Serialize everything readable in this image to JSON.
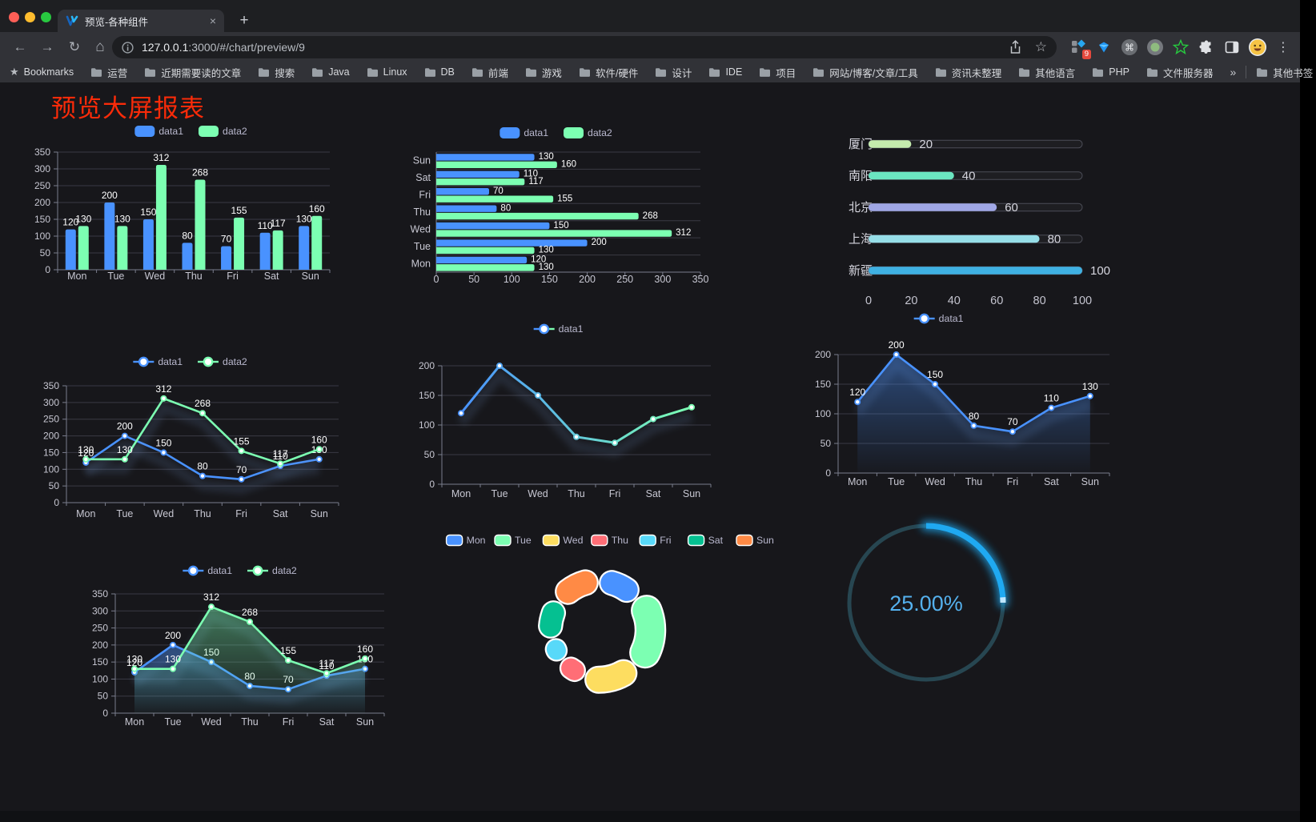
{
  "browser": {
    "tab_title": "预览-各种组件",
    "url_host": "127.0.0.1",
    "url_rest": ":3000/#/chart/preview/9",
    "extension_badge": "9"
  },
  "icons": {
    "close_tab": "×",
    "new_tab": "+",
    "back": "←",
    "forward": "→",
    "reload": "↻",
    "home": "⌂",
    "bookmark_star_outline": "☆",
    "menu_dots": "⋮",
    "bookmarks_star": "★",
    "command": "⌘",
    "overflow_chevron": "»"
  },
  "bookmarks_bar": {
    "bookmarks_label": "Bookmarks",
    "folders": [
      "运营",
      "近期需要读的文章",
      "搜索",
      "Java",
      "Linux",
      "DB",
      "前端",
      "游戏",
      "软件/硬件",
      "设计",
      "IDE",
      "项目",
      "网站/博客/文章/工具",
      "资讯未整理",
      "其他语言",
      "PHP",
      "文件服务器"
    ],
    "other_bookmarks": "其他书签"
  },
  "page": {
    "title": "预览大屏报表",
    "title_color": "#fa2b09",
    "background": "#17171b"
  },
  "chart_data": [
    {
      "id": "bar-vertical",
      "type": "bar",
      "categories": [
        "Mon",
        "Tue",
        "Wed",
        "Thu",
        "Fri",
        "Sat",
        "Sun"
      ],
      "series": [
        {
          "name": "data1",
          "color": "#4992ff",
          "values": [
            120,
            200,
            150,
            80,
            70,
            110,
            130
          ]
        },
        {
          "name": "data2",
          "color": "#7cffb2",
          "values": [
            130,
            130,
            312,
            268,
            155,
            117,
            160
          ]
        }
      ],
      "ylim": [
        0,
        350
      ],
      "ystep": 50,
      "legend_position": "top",
      "grid": true,
      "value_labels": true
    },
    {
      "id": "bar-horizontal",
      "type": "bar-horizontal",
      "categories": [
        "Mon",
        "Tue",
        "Wed",
        "Thu",
        "Fri",
        "Sat",
        "Sun"
      ],
      "series": [
        {
          "name": "data1",
          "color": "#4992ff",
          "values": [
            120,
            200,
            150,
            80,
            70,
            110,
            130
          ]
        },
        {
          "name": "data2",
          "color": "#7cffb2",
          "values": [
            130,
            130,
            312,
            268,
            155,
            117,
            160
          ]
        }
      ],
      "xlim": [
        0,
        350
      ],
      "xstep": 50,
      "legend_position": "top",
      "value_labels": true
    },
    {
      "id": "progress-bars",
      "type": "progress",
      "items": [
        {
          "label": "厦门",
          "value": 20,
          "color": "#c4ebad"
        },
        {
          "label": "南阳",
          "value": 40,
          "color": "#6be6c1"
        },
        {
          "label": "北京",
          "value": 60,
          "color": "#a0a7e6"
        },
        {
          "label": "上海",
          "value": 80,
          "color": "#96dee8"
        },
        {
          "label": "新疆",
          "value": 100,
          "color": "#3fb1e3"
        }
      ],
      "xlim": [
        0,
        100
      ],
      "xticks": [
        0,
        20,
        40,
        60,
        80,
        100
      ]
    },
    {
      "id": "line-two-series",
      "type": "line",
      "categories": [
        "Mon",
        "Tue",
        "Wed",
        "Thu",
        "Fri",
        "Sat",
        "Sun"
      ],
      "series": [
        {
          "name": "data1",
          "color": "#4992ff",
          "values": [
            120,
            200,
            150,
            80,
            70,
            110,
            130
          ]
        },
        {
          "name": "data2",
          "color": "#7cffb2",
          "values": [
            130,
            130,
            312,
            268,
            155,
            117,
            160
          ]
        }
      ],
      "ylim": [
        0,
        350
      ],
      "ystep": 50,
      "legend_position": "top",
      "value_labels": true
    },
    {
      "id": "line-gradient",
      "type": "line-gradient",
      "categories": [
        "Mon",
        "Tue",
        "Wed",
        "Thu",
        "Fri",
        "Sat",
        "Sun"
      ],
      "series": [
        {
          "name": "data1",
          "color": "#4992ff",
          "color_end": "#7cffb2",
          "values": [
            120,
            200,
            150,
            80,
            70,
            110,
            130
          ]
        }
      ],
      "ylim": [
        0,
        200
      ],
      "ystep": 50,
      "legend_position": "top",
      "value_labels": false
    },
    {
      "id": "area-single",
      "type": "area",
      "categories": [
        "Mon",
        "Tue",
        "Wed",
        "Thu",
        "Fri",
        "Sat",
        "Sun"
      ],
      "series": [
        {
          "name": "data1",
          "color": "#4992ff",
          "values": [
            120,
            200,
            150,
            80,
            70,
            110,
            130
          ]
        }
      ],
      "ylim": [
        0,
        200
      ],
      "ystep": 50,
      "legend_position": "top",
      "value_labels": true
    },
    {
      "id": "area-two-series",
      "type": "area",
      "categories": [
        "Mon",
        "Tue",
        "Wed",
        "Thu",
        "Fri",
        "Sat",
        "Sun"
      ],
      "series": [
        {
          "name": "data1",
          "color": "#4992ff",
          "values": [
            120,
            200,
            150,
            80,
            70,
            110,
            130
          ]
        },
        {
          "name": "data2",
          "color": "#7cffb2",
          "values": [
            130,
            130,
            312,
            268,
            155,
            117,
            160
          ]
        }
      ],
      "ylim": [
        0,
        350
      ],
      "ystep": 50,
      "legend_position": "top",
      "value_labels": true
    },
    {
      "id": "pie-rose",
      "type": "pie",
      "rose": true,
      "items": [
        {
          "name": "Mon",
          "value": 120,
          "color": "#4992ff"
        },
        {
          "name": "Tue",
          "value": 200,
          "color": "#7cffb2"
        },
        {
          "name": "Wed",
          "value": 150,
          "color": "#fddd60"
        },
        {
          "name": "Thu",
          "value": 80,
          "color": "#ff6e76"
        },
        {
          "name": "Fri",
          "value": 70,
          "color": "#58d9f9"
        },
        {
          "name": "Sat",
          "value": 110,
          "color": "#05c091"
        },
        {
          "name": "Sun",
          "value": 130,
          "color": "#ff8a45"
        }
      ],
      "legend_position": "top"
    },
    {
      "id": "gauge-progress",
      "type": "gauge",
      "value": 25,
      "display": "25.00%",
      "color": "#1fa9f1",
      "track_color": "#274651",
      "text_color": "#55b1ee"
    }
  ]
}
